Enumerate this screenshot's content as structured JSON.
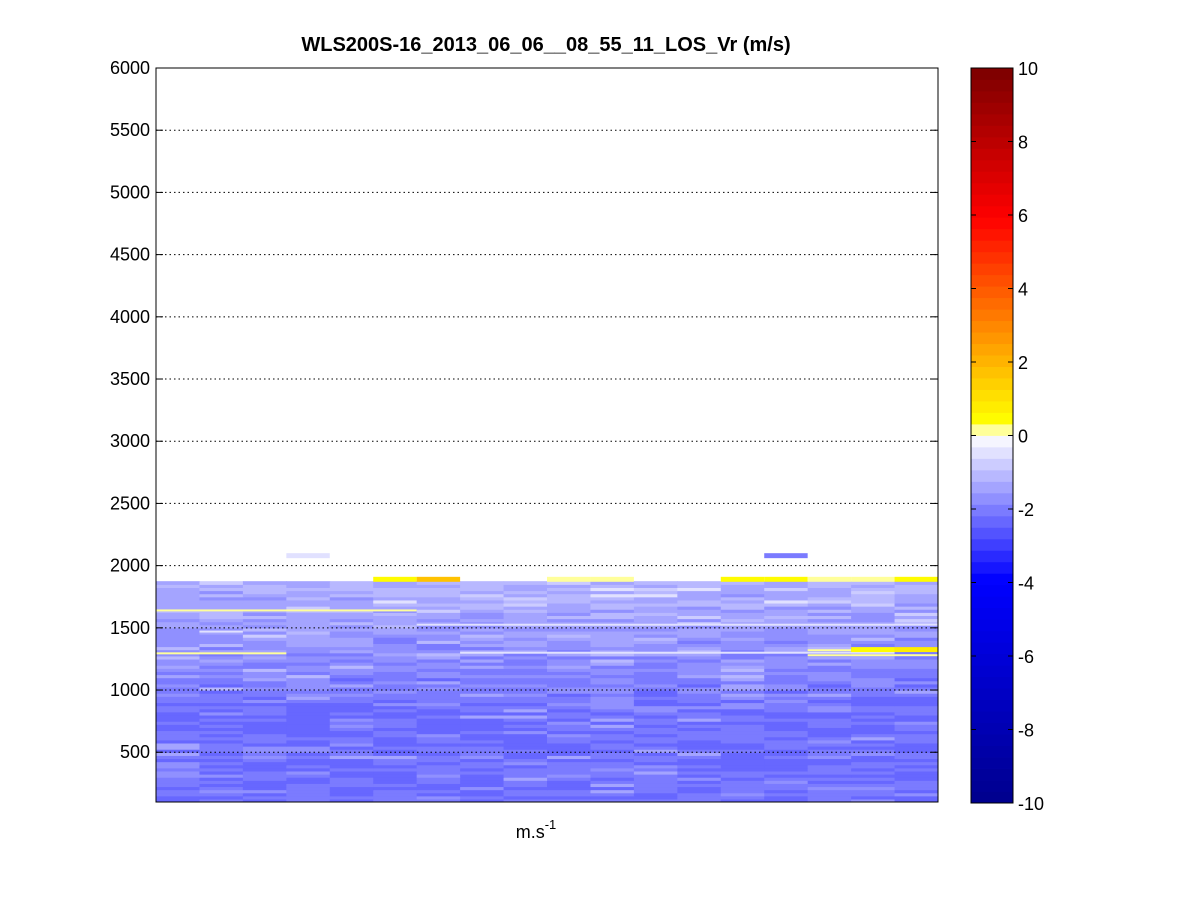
{
  "chart_data": {
    "type": "heatmap",
    "title": "WLS200S-16_2013_06_06__08_55_11_LOS_Vr (m/s)",
    "xlabel": "m.s",
    "xlabel_superscript": "-1",
    "ylabel": "",
    "ylim": [
      100,
      6000
    ],
    "yticks": [
      500,
      1000,
      1500,
      2000,
      2500,
      3000,
      3500,
      4000,
      4500,
      5000,
      5500,
      6000
    ],
    "y_grid": "dotted",
    "x_ticks": [],
    "colorbar": {
      "label": "",
      "range": [
        -10,
        10
      ],
      "ticks": [
        -10,
        -8,
        -6,
        -4,
        -2,
        0,
        2,
        4,
        6,
        8,
        10
      ],
      "colors": [
        "#00008f",
        "#0000ff",
        "#ffffff",
        "#ffff00",
        "#ff0000",
        "#800000"
      ]
    },
    "columns": 18,
    "row_step_m": 25,
    "data_top_m": 1860,
    "upper_cells": [
      {
        "col": 3,
        "altitude": 2080,
        "value": -0.6
      },
      {
        "col": 14,
        "altitude": 2080,
        "value": -1.9
      },
      {
        "col": 5,
        "altitude": 1890,
        "value": 0.6
      },
      {
        "col": 6,
        "altitude": 1890,
        "value": 1.8
      },
      {
        "col": 9,
        "altitude": 1890,
        "value": 0.3
      },
      {
        "col": 10,
        "altitude": 1890,
        "value": 0.3
      },
      {
        "col": 13,
        "altitude": 1890,
        "value": 0.6
      },
      {
        "col": 14,
        "altitude": 1890,
        "value": 0.6
      },
      {
        "col": 15,
        "altitude": 1890,
        "value": 0.3
      },
      {
        "col": 16,
        "altitude": 1890,
        "value": 0.3
      },
      {
        "col": 17,
        "altitude": 1890,
        "value": 0.6
      },
      {
        "col": 16,
        "altitude": 1325,
        "value": 0.6
      },
      {
        "col": 17,
        "altitude": 1325,
        "value": 0.9
      }
    ],
    "near_zero_streaks": [
      {
        "col_start": 0,
        "col_end": 5,
        "altitude": 1640,
        "value": 0.0
      },
      {
        "col_start": 0,
        "col_end": 2,
        "altitude": 1295,
        "value": 0.0
      },
      {
        "col_start": 15,
        "col_end": 17,
        "altitude": 1280,
        "value": 0.0
      },
      {
        "col_start": 15,
        "col_end": 15,
        "altitude": 1320,
        "value": 0.0
      },
      {
        "col_start": 1,
        "col_end": 1,
        "altitude": 1470,
        "value": -0.5
      },
      {
        "col_start": 6,
        "col_end": 17,
        "altitude": 1525,
        "value": -0.4
      },
      {
        "col_start": 7,
        "col_end": 16,
        "altitude": 1300,
        "value": -0.5
      }
    ]
  }
}
